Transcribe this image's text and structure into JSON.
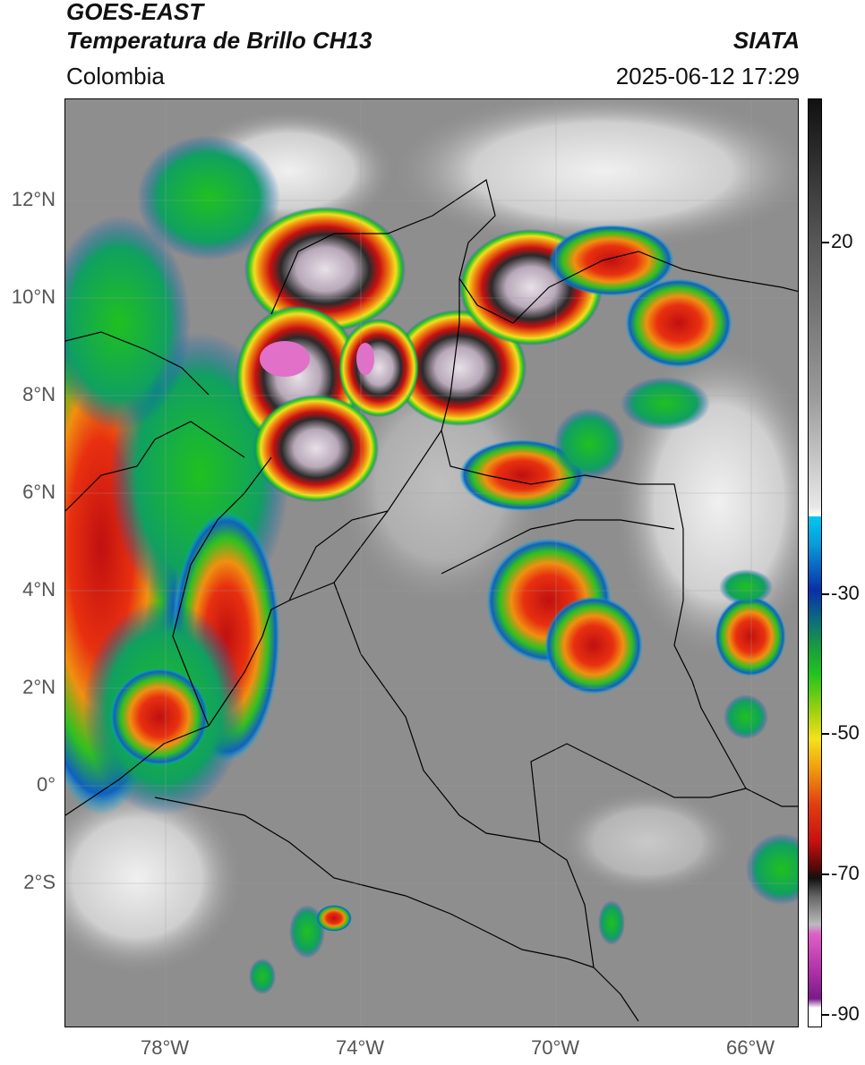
{
  "header": {
    "satellite": "GOES-EAST",
    "product": "Temperatura de Brillo CH13",
    "brand": "SIATA",
    "region": "Colombia",
    "timestamp": "2025-06-12 17:29"
  },
  "axes": {
    "lat_labels": [
      "12°N",
      "10°N",
      "8°N",
      "6°N",
      "4°N",
      "2°N",
      "0°",
      "2°S"
    ],
    "lon_labels": [
      "78°W",
      "74°W",
      "70°W",
      "66°W"
    ]
  },
  "colorbar": {
    "labels": [
      "20",
      "-30",
      "-50",
      "-70",
      "-90"
    ],
    "colors": {
      "warm_gray": "#8c8c8c",
      "cyan": "#00b8e6",
      "blue": "#0a2fa8",
      "green": "#22c41c",
      "yellow": "#f5e11a",
      "orange": "#f07a12",
      "red": "#d81010",
      "dark": "#1a1a1a",
      "pink": "#e060c8",
      "purple": "#7a1a8a"
    }
  }
}
